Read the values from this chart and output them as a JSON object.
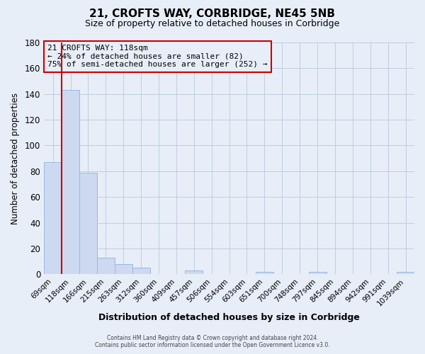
{
  "title": "21, CROFTS WAY, CORBRIDGE, NE45 5NB",
  "subtitle": "Size of property relative to detached houses in Corbridge",
  "xlabel": "Distribution of detached houses by size in Corbridge",
  "ylabel": "Number of detached properties",
  "bar_labels": [
    "69sqm",
    "118sqm",
    "166sqm",
    "215sqm",
    "263sqm",
    "312sqm",
    "360sqm",
    "409sqm",
    "457sqm",
    "506sqm",
    "554sqm",
    "603sqm",
    "651sqm",
    "700sqm",
    "748sqm",
    "797sqm",
    "845sqm",
    "894sqm",
    "942sqm",
    "991sqm",
    "1039sqm"
  ],
  "bar_heights": [
    87,
    143,
    79,
    13,
    8,
    5,
    0,
    0,
    3,
    0,
    0,
    0,
    2,
    0,
    0,
    2,
    0,
    0,
    0,
    0,
    2
  ],
  "bar_color": "#ccd9f0",
  "bar_edge_color": "#99b8e0",
  "highlight_color": "#cc0000",
  "ylim": [
    0,
    180
  ],
  "yticks": [
    0,
    20,
    40,
    60,
    80,
    100,
    120,
    140,
    160,
    180
  ],
  "annotation_title": "21 CROFTS WAY: 118sqm",
  "annotation_line1": "← 24% of detached houses are smaller (82)",
  "annotation_line2": "75% of semi-detached houses are larger (252) →",
  "footer_line1": "Contains HM Land Registry data © Crown copyright and database right 2024.",
  "footer_line2": "Contains public sector information licensed under the Open Government Licence v3.0.",
  "background_color": "#e8eef8",
  "plot_bg_color": "#e8eef8"
}
